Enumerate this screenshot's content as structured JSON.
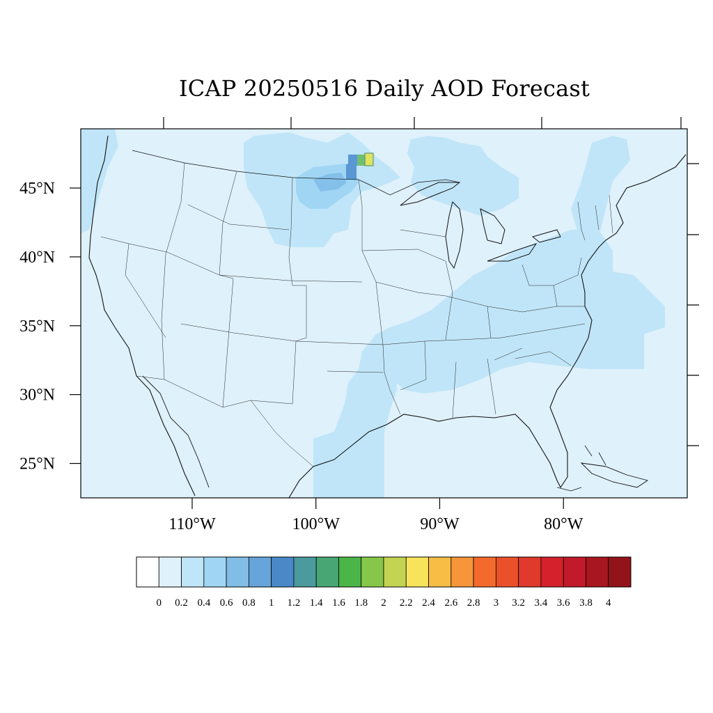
{
  "title": "ICAP 20250516 Daily AOD Forecast",
  "map": {
    "lon_range": [
      -119,
      -70
    ],
    "lat_range": [
      22.5,
      49.3
    ],
    "lat_ticks": [
      {
        "value": 45,
        "label": "45°N"
      },
      {
        "value": 40,
        "label": "40°N"
      },
      {
        "value": 35,
        "label": "35°N"
      },
      {
        "value": 30,
        "label": "30°N"
      },
      {
        "value": 25,
        "label": "25°N"
      }
    ],
    "lon_ticks": [
      {
        "value": -110,
        "label": "110°W"
      },
      {
        "value": -100,
        "label": "100°W"
      },
      {
        "value": -90,
        "label": "90°W"
      },
      {
        "value": -80,
        "label": "80°W"
      }
    ],
    "colors": {
      "ocean_land_base": "#dff1fb",
      "level_0_2": "#c0e5f8",
      "level_0_4": "#a0d6f4",
      "level_0_6": "#85c0ea",
      "level_1": "#5a98d4",
      "plume_green": "#6fbf73",
      "plume_yellow": "#dfe35e",
      "outline": "#111111"
    }
  },
  "colorbar": {
    "labels": [
      "0",
      "0.2",
      "0.4",
      "0.6",
      "0.8",
      "1",
      "1.2",
      "1.4",
      "1.6",
      "1.8",
      "2",
      "2.2",
      "2.4",
      "2.6",
      "2.8",
      "3",
      "3.2",
      "3.4",
      "3.6",
      "3.8",
      "4"
    ],
    "colors": [
      "#ffffff",
      "#dff1fb",
      "#bfe5f8",
      "#a0d6f4",
      "#82bde6",
      "#66a4da",
      "#4a88c8",
      "#4a9a9e",
      "#47a673",
      "#4bb548",
      "#86c74a",
      "#c2d452",
      "#f7e45a",
      "#f8bd45",
      "#f6953a",
      "#f46a2c",
      "#ea512b",
      "#df3a2b",
      "#d4212b",
      "#c11a2a",
      "#a8161f",
      "#92141a"
    ]
  }
}
